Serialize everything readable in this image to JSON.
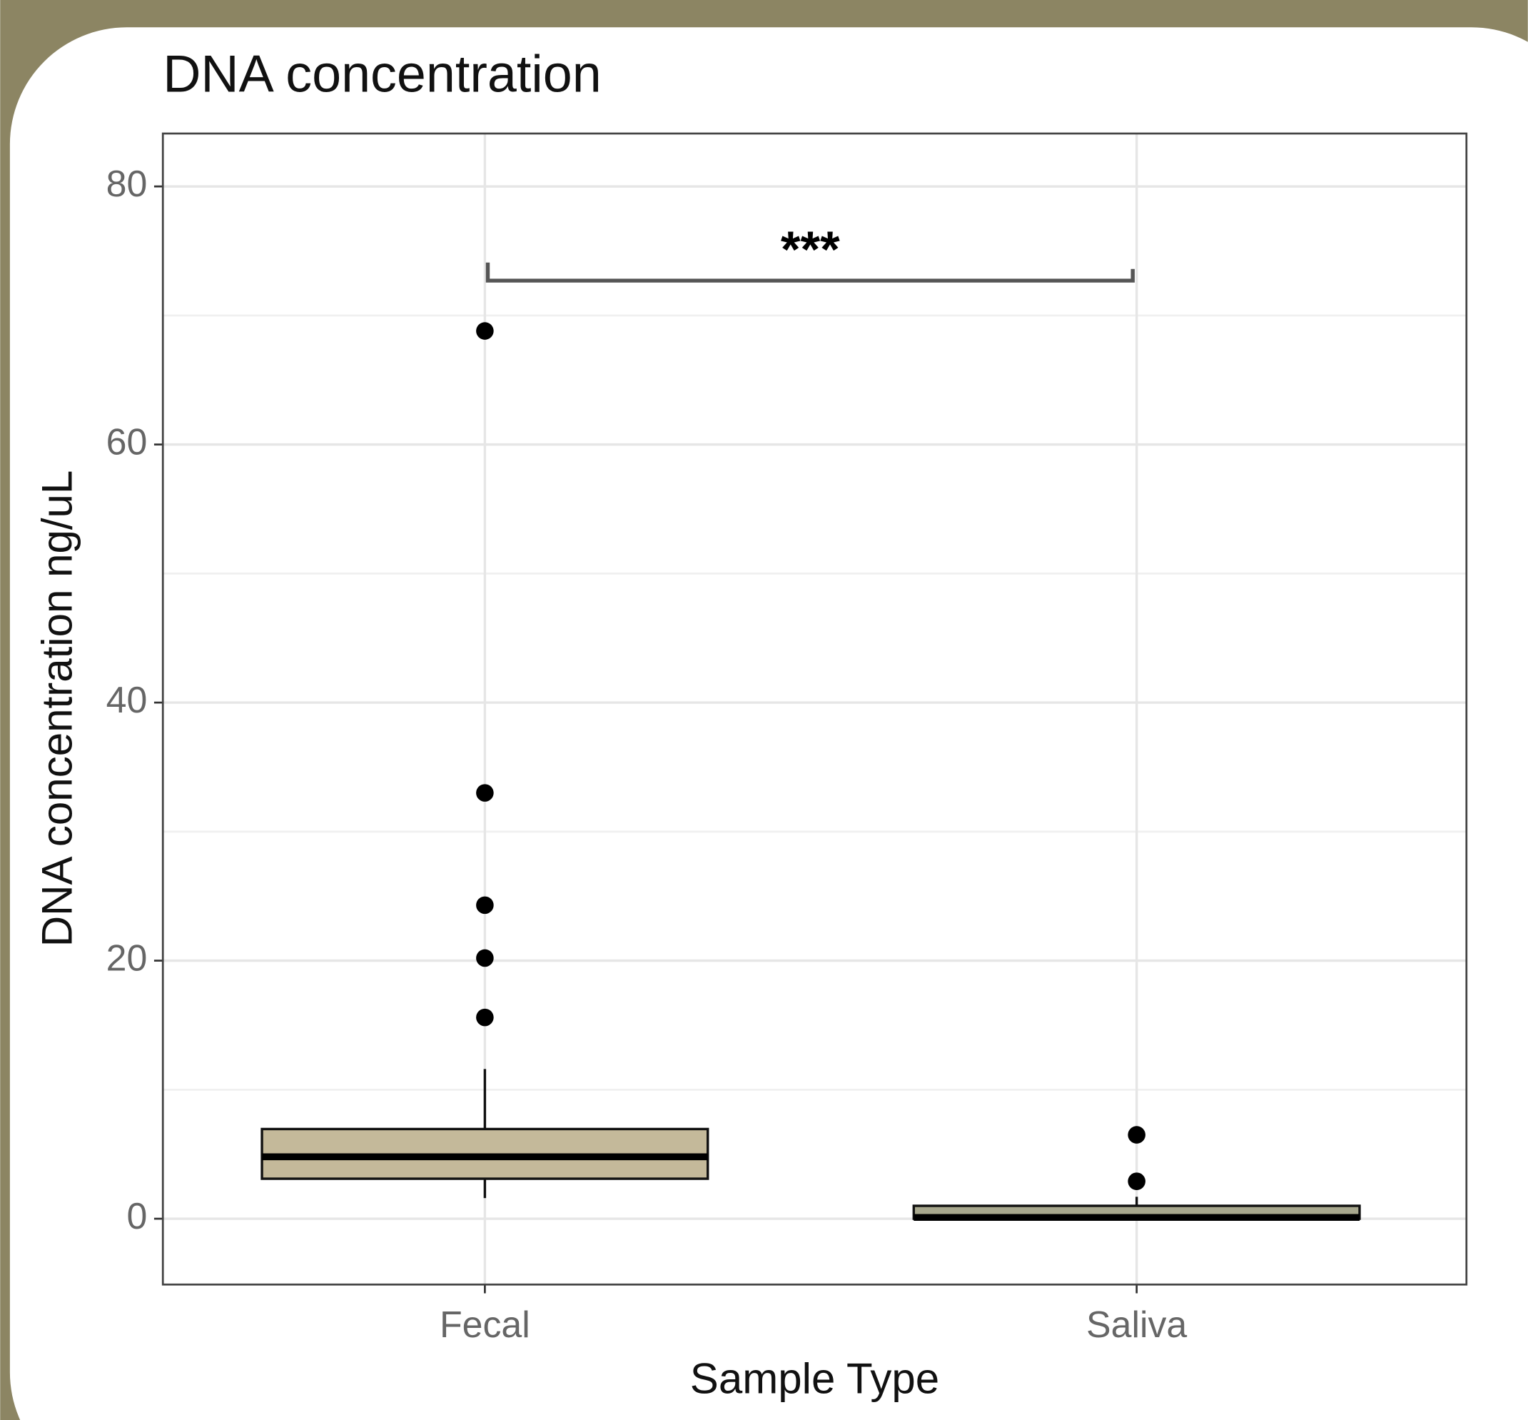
{
  "chart_data": {
    "type": "box",
    "title": "DNA concentration",
    "x_label": "Sample Type",
    "y_label": "DNA concentration ng/uL",
    "categories": [
      "Fecal",
      "Saliva"
    ],
    "boxes": [
      {
        "whislo": 1.6,
        "q1": 3.1,
        "med": 4.8,
        "q3": 6.95,
        "whishi": 11.6,
        "fliers": [
          15.6,
          20.2,
          24.3,
          33.0,
          68.8
        ],
        "color": "#c4b99a"
      },
      {
        "whislo": 0,
        "q1": 0,
        "med": 0.1,
        "q3": 1.0,
        "whishi": 1.7,
        "fliers": [
          2.9,
          6.5
        ],
        "color": "#a8a88e"
      }
    ],
    "annotations": [
      {
        "text": "***",
        "y": 72.7,
        "left_end": 74.1,
        "right_end": 73.6
      }
    ],
    "ylim": [
      -5.1,
      84.1
    ],
    "yticks": [
      0,
      20,
      40,
      60,
      80
    ],
    "minor_yticks": [
      10,
      30,
      50,
      70
    ],
    "grid": true
  }
}
